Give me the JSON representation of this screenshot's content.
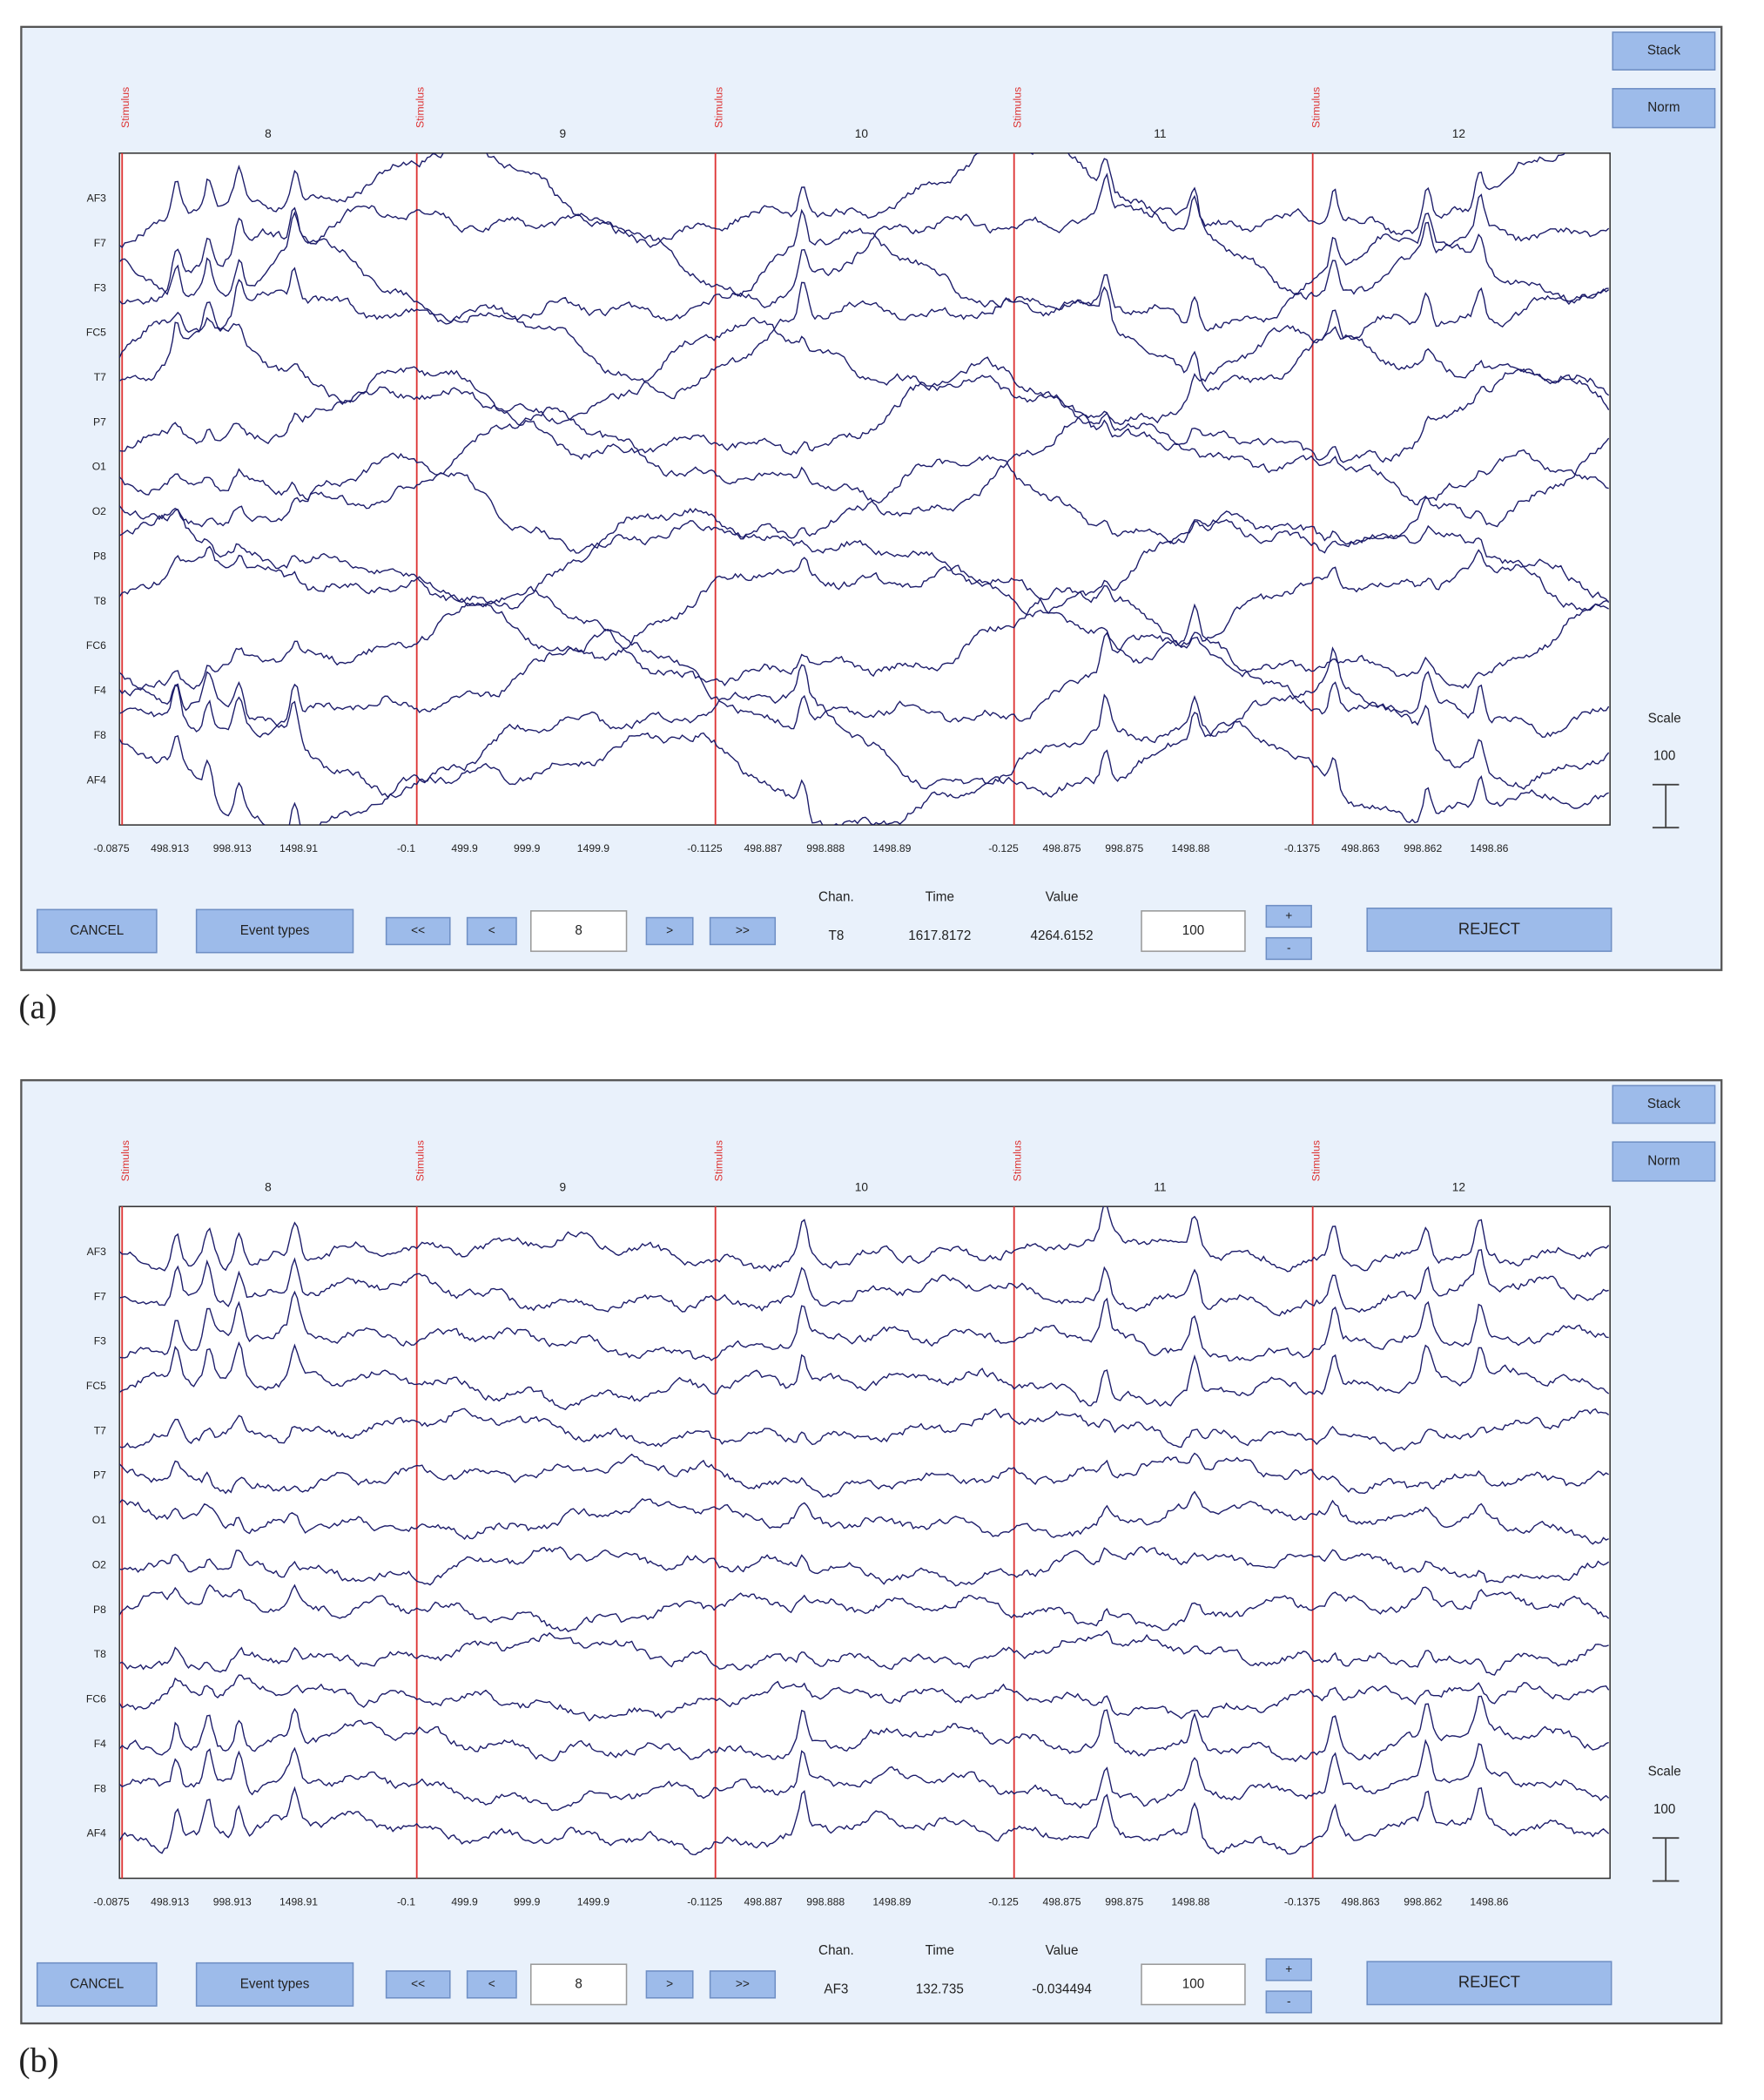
{
  "panels": [
    {
      "caption": "(a)",
      "buttons": {
        "stack": "Stack",
        "norm": "Norm"
      },
      "events": [
        "Stimulus",
        "Stimulus",
        "Stimulus",
        "Stimulus",
        "Stimulus"
      ],
      "epochs": [
        "8",
        "9",
        "10",
        "11",
        "12"
      ],
      "channels": [
        "AF3",
        "F7",
        "F3",
        "FC5",
        "T7",
        "P7",
        "O1",
        "O2",
        "P8",
        "T8",
        "FC6",
        "F4",
        "F8",
        "AF4"
      ],
      "x_ticks": [
        [
          "-0.0875",
          "498.913",
          "998.913",
          "1498.91"
        ],
        [
          "-0.1",
          "499.9",
          "999.9",
          "1499.9"
        ],
        [
          "-0.1125",
          "498.887",
          "998.888",
          "1498.89"
        ],
        [
          "-0.125",
          "498.875",
          "998.875",
          "1498.88"
        ],
        [
          "-0.1375",
          "498.863",
          "998.862",
          "1498.86"
        ]
      ],
      "controls": {
        "cancel": "CANCEL",
        "event_types": "Event types",
        "first": "<<",
        "prev": "<",
        "epoch_input": "8",
        "next": ">",
        "last": ">>",
        "chan_header": "Chan.",
        "time_header": "Time",
        "value_header": "Value",
        "chan": "T8",
        "time": "1617.8172",
        "value": "4264.6152",
        "scale_input": "100",
        "plus": "+",
        "minus": "-",
        "reject": "REJECT"
      },
      "scale": {
        "label": "Scale",
        "value": "100"
      }
    },
    {
      "caption": "(b)",
      "buttons": {
        "stack": "Stack",
        "norm": "Norm"
      },
      "events": [
        "Stimulus",
        "Stimulus",
        "Stimulus",
        "Stimulus",
        "Stimulus"
      ],
      "epochs": [
        "8",
        "9",
        "10",
        "11",
        "12"
      ],
      "channels": [
        "AF3",
        "F7",
        "F3",
        "FC5",
        "T7",
        "P7",
        "O1",
        "O2",
        "P8",
        "T8",
        "FC6",
        "F4",
        "F8",
        "AF4"
      ],
      "x_ticks": [
        [
          "-0.0875",
          "498.913",
          "998.913",
          "1498.91"
        ],
        [
          "-0.1",
          "499.9",
          "999.9",
          "1499.9"
        ],
        [
          "-0.1125",
          "498.887",
          "998.888",
          "1498.89"
        ],
        [
          "-0.125",
          "498.875",
          "998.875",
          "1498.88"
        ],
        [
          "-0.1375",
          "498.863",
          "998.862",
          "1498.86"
        ]
      ],
      "controls": {
        "cancel": "CANCEL",
        "event_types": "Event types",
        "first": "<<",
        "prev": "<",
        "epoch_input": "8",
        "next": ">",
        "last": ">>",
        "chan_header": "Chan.",
        "time_header": "Time",
        "value_header": "Value",
        "chan": "AF3",
        "time": "132.735",
        "value": "-0.034494",
        "scale_input": "100",
        "plus": "+",
        "minus": "-",
        "reject": "REJECT"
      },
      "scale": {
        "label": "Scale",
        "value": "100"
      }
    }
  ]
}
